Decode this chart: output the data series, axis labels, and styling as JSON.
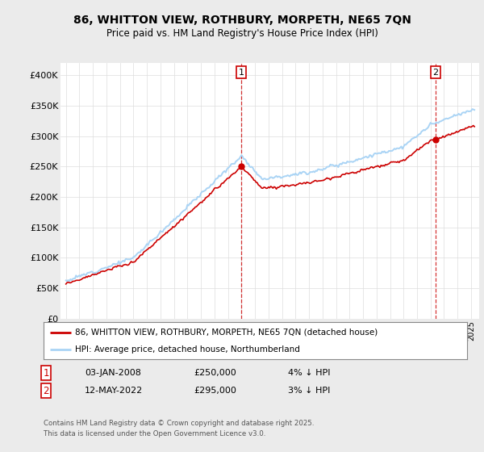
{
  "title_line1": "86, WHITTON VIEW, ROTHBURY, MORPETH, NE65 7QN",
  "title_line2": "Price paid vs. HM Land Registry's House Price Index (HPI)",
  "ylim": [
    0,
    420000
  ],
  "yticks": [
    0,
    50000,
    100000,
    150000,
    200000,
    250000,
    300000,
    350000,
    400000
  ],
  "ytick_labels": [
    "£0",
    "£50K",
    "£100K",
    "£150K",
    "£200K",
    "£250K",
    "£300K",
    "£350K",
    "£400K"
  ],
  "hpi_color": "#aad4f5",
  "price_color": "#cc0000",
  "sale_dates": [
    2008.0,
    2022.37
  ],
  "sale_prices": [
    250000,
    295000
  ],
  "legend_price_label": "86, WHITTON VIEW, ROTHBURY, MORPETH, NE65 7QN (detached house)",
  "legend_hpi_label": "HPI: Average price, detached house, Northumberland",
  "note1_date": "03-JAN-2008",
  "note1_price": "£250,000",
  "note1_hpi": "4% ↓ HPI",
  "note2_date": "12-MAY-2022",
  "note2_price": "£295,000",
  "note2_hpi": "3% ↓ HPI",
  "footer": "Contains HM Land Registry data © Crown copyright and database right 2025.\nThis data is licensed under the Open Government Licence v3.0.",
  "bg_color": "#ebebeb",
  "plot_bg_color": "#ffffff"
}
